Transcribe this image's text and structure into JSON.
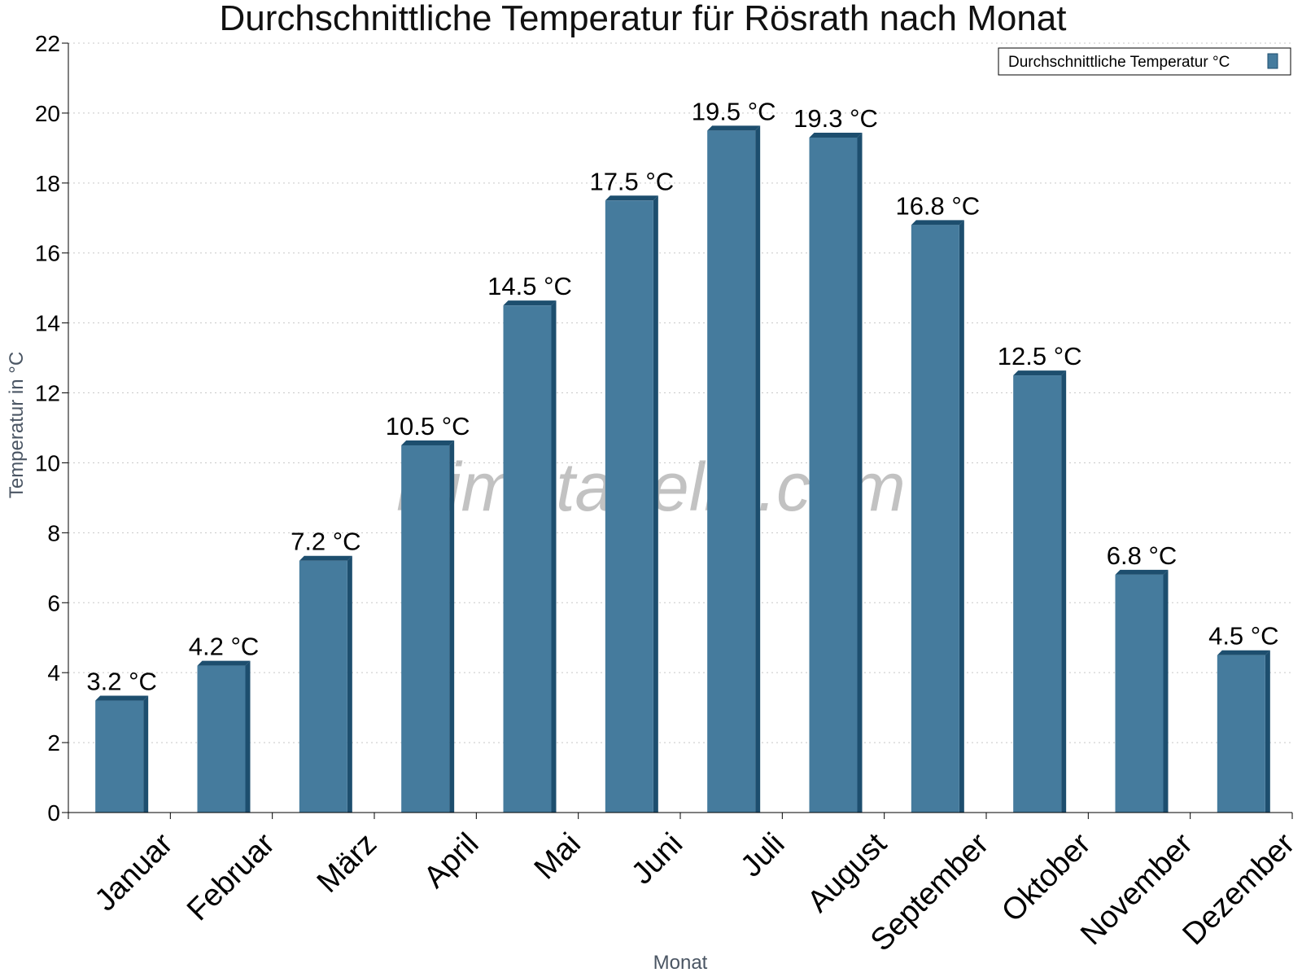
{
  "chart_data": {
    "type": "bar",
    "title": "Durchschnittliche Temperatur für Rösrath nach Monat",
    "xlabel": "Monat",
    "ylabel": "Temperatur in °C",
    "categories": [
      "Januar",
      "Februar",
      "März",
      "April",
      "Mai",
      "Juni",
      "Juli",
      "August",
      "September",
      "Oktober",
      "November",
      "Dezember"
    ],
    "series": [
      {
        "name": "Durchschnittliche Temperatur °C",
        "values": [
          3.2,
          4.2,
          7.2,
          10.5,
          14.5,
          17.5,
          19.5,
          19.3,
          16.8,
          12.5,
          6.8,
          4.5
        ],
        "color": "#457b9d",
        "side_color": "#1d4e6e"
      }
    ],
    "data_labels": [
      "3.2 °C",
      "4.2 °C",
      "7.2 °C",
      "10.5 °C",
      "14.5 °C",
      "17.5 °C",
      "19.5 °C",
      "19.3 °C",
      "16.8 °C",
      "12.5 °C",
      "6.8 °C",
      "4.5 °C"
    ],
    "ylim": [
      0,
      22
    ],
    "yticks": [
      "0",
      "2",
      "4",
      "6",
      "8",
      "10",
      "12",
      "14",
      "16",
      "18",
      "20",
      "22"
    ],
    "grid": true,
    "legend_position": "top-right",
    "watermark": "klimatabelle.com"
  }
}
